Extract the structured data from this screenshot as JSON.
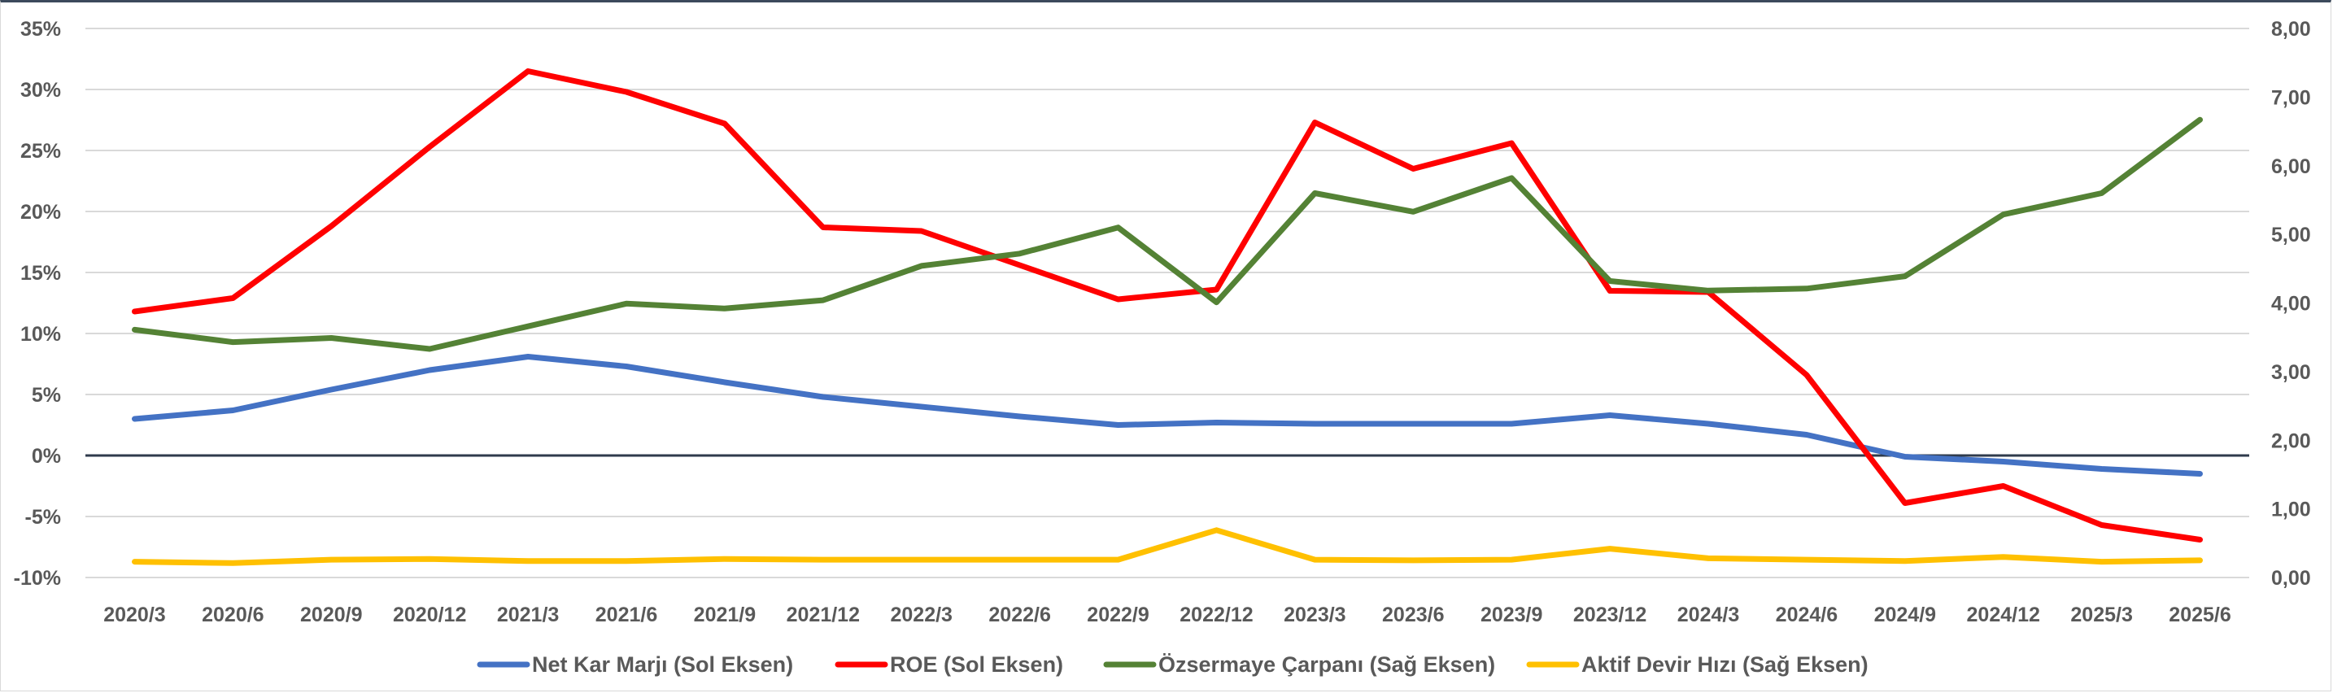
{
  "chart_data": {
    "type": "line",
    "title": "",
    "categories": [
      "2020/3",
      "2020/6",
      "2020/9",
      "2020/12",
      "2021/3",
      "2021/6",
      "2021/9",
      "2021/12",
      "2022/3",
      "2022/6",
      "2022/9",
      "2022/12",
      "2023/3",
      "2023/6",
      "2023/9",
      "2023/12",
      "2024/3",
      "2024/6",
      "2024/9",
      "2024/12",
      "2025/3",
      "2025/6"
    ],
    "left_axis": {
      "ylim": [
        -10,
        35
      ],
      "ticks": [
        -10,
        -5,
        0,
        5,
        10,
        15,
        20,
        25,
        30,
        35
      ],
      "tick_labels": [
        "-10%",
        "-5%",
        "0%",
        "5%",
        "10%",
        "15%",
        "20%",
        "25%",
        "30%",
        "35%"
      ]
    },
    "right_axis": {
      "ylim": [
        0,
        8
      ],
      "ticks": [
        0,
        1,
        2,
        3,
        4,
        5,
        6,
        7,
        8
      ],
      "tick_labels": [
        "0,00",
        "1,00",
        "2,00",
        "3,00",
        "4,00",
        "5,00",
        "6,00",
        "7,00",
        "8,00"
      ]
    },
    "grid": true,
    "legend_position": "bottom",
    "series": [
      {
        "name": "Net Kar Marjı (Sol Eksen)",
        "axis": "left",
        "color": "#4472C4",
        "values": [
          3.0,
          3.7,
          5.4,
          7.0,
          8.1,
          7.3,
          6.0,
          4.8,
          4.0,
          3.2,
          2.5,
          2.7,
          2.6,
          2.6,
          2.6,
          3.3,
          2.6,
          1.7,
          -0.1,
          -0.5,
          -1.1,
          -1.5
        ]
      },
      {
        "name": "ROE (Sol Eksen)",
        "axis": "left",
        "color": "#FF0000",
        "values": [
          11.8,
          12.9,
          18.8,
          25.3,
          31.5,
          29.8,
          27.2,
          18.7,
          18.4,
          15.6,
          12.8,
          13.6,
          27.3,
          23.5,
          25.6,
          13.5,
          13.4,
          6.6,
          -3.9,
          -2.5,
          -5.7,
          -6.9
        ]
      },
      {
        "name": "Özsermaye Çarpanı (Sağ Eksen)",
        "axis": "right",
        "color": "#548235",
        "values": [
          3.61,
          3.43,
          3.49,
          3.33,
          3.66,
          3.99,
          3.92,
          4.04,
          4.54,
          4.72,
          5.1,
          4.01,
          5.6,
          5.33,
          5.82,
          4.32,
          4.18,
          4.21,
          4.39,
          5.29,
          5.6,
          6.67
        ]
      },
      {
        "name": "Aktif Devir Hızı (Sağ Eksen)",
        "axis": "right",
        "color": "#FFC000",
        "values": [
          0.23,
          0.21,
          0.26,
          0.27,
          0.24,
          0.24,
          0.27,
          0.26,
          0.26,
          0.26,
          0.26,
          0.69,
          0.26,
          0.25,
          0.26,
          0.42,
          0.28,
          0.26,
          0.24,
          0.3,
          0.23,
          0.25
        ]
      }
    ]
  }
}
